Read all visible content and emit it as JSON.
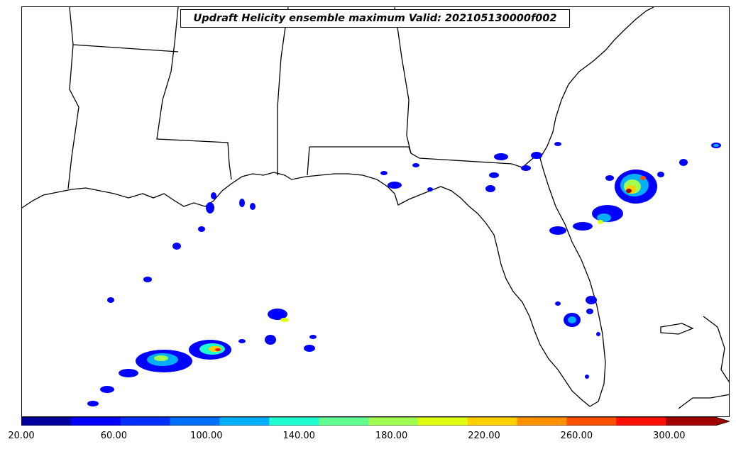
{
  "title": "Updraft Helicity ensemble maximum Valid: 202105130000f002",
  "colorbar": {
    "colors": [
      "#00009f",
      "#0000ff",
      "#0030ff",
      "#0070ff",
      "#00b0ff",
      "#20ffd0",
      "#60ff90",
      "#a0ff50",
      "#e0ff10",
      "#ffd000",
      "#ff9000",
      "#ff5000",
      "#ff1000",
      "#a00000"
    ],
    "extend_color": "#a00000",
    "ticks": [
      "20.00",
      "60.00",
      "100.00",
      "140.00",
      "180.00",
      "220.00",
      "260.00",
      "300.00"
    ],
    "range": [
      20,
      320
    ]
  }
}
